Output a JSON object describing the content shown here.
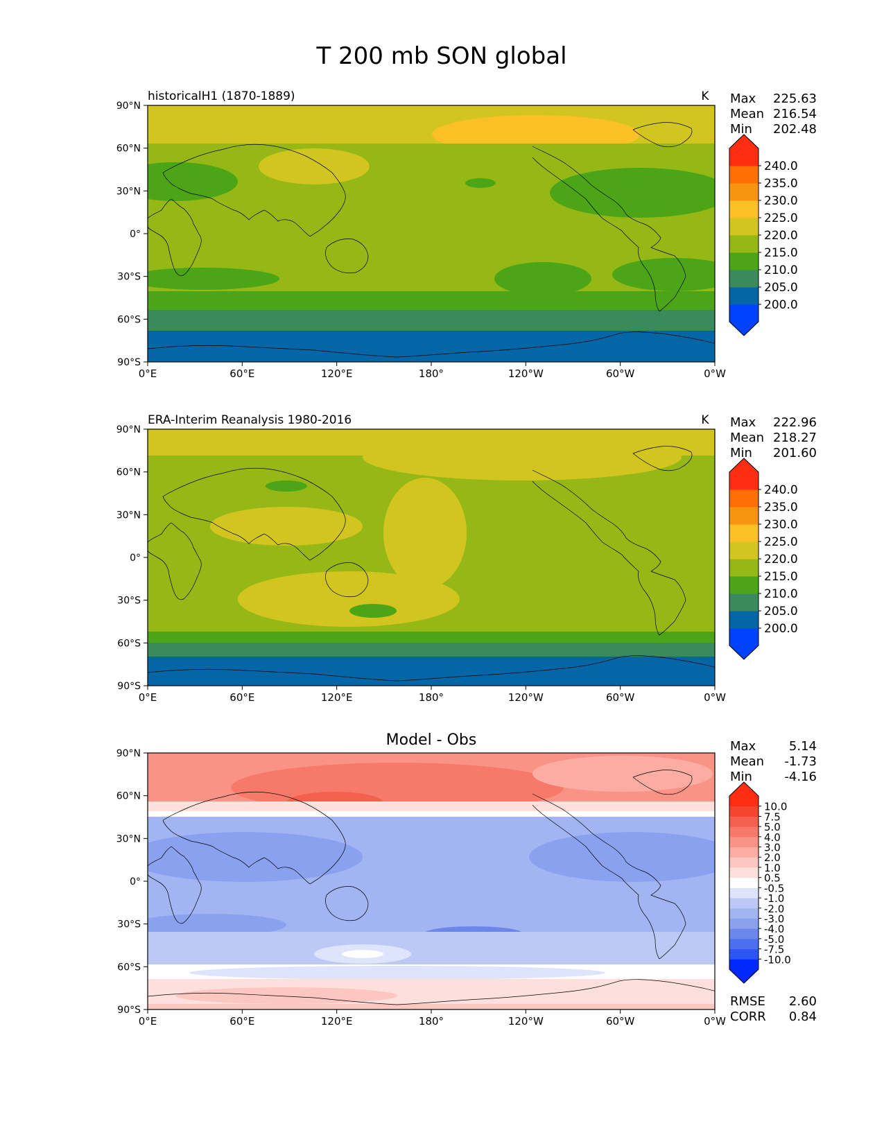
{
  "chart_data": {
    "type": "contour-map",
    "title": "T 200 mb SON global",
    "lat_ticks": [
      "90°N",
      "60°N",
      "30°N",
      "0°",
      "30°S",
      "60°S",
      "90°S"
    ],
    "lon_ticks": [
      "0°E",
      "60°E",
      "120°E",
      "180°",
      "120°W",
      "60°W",
      "0°W"
    ],
    "panels": [
      {
        "left_title": "historicalH1 (1870-1889)",
        "units": "K",
        "stats": [
          {
            "label": "Max",
            "value": "225.63"
          },
          {
            "label": "Mean",
            "value": "216.54"
          },
          {
            "label": "Min",
            "value": "202.48"
          }
        ],
        "colorbar": {
          "levels": [
            "200.0",
            "205.0",
            "210.0",
            "215.0",
            "220.0",
            "225.0",
            "230.0",
            "235.0",
            "240.0"
          ],
          "colors": [
            "#0042ff",
            "#0466a6",
            "#3a8a5e",
            "#4ca516",
            "#95b817",
            "#d3c51f",
            "#fbc025",
            "#f79510",
            "#ff6f03",
            "#ff2d12"
          ]
        }
      },
      {
        "left_title": "ERA-Interim Reanalysis 1980-2016",
        "units": "K",
        "stats": [
          {
            "label": "Max",
            "value": "222.96"
          },
          {
            "label": "Mean",
            "value": "218.27"
          },
          {
            "label": "Min",
            "value": "201.60"
          }
        ],
        "colorbar": {
          "levels": [
            "200.0",
            "205.0",
            "210.0",
            "215.0",
            "220.0",
            "225.0",
            "230.0",
            "235.0",
            "240.0"
          ],
          "colors": [
            "#0042ff",
            "#0466a6",
            "#3a8a5e",
            "#4ca516",
            "#95b817",
            "#d3c51f",
            "#fbc025",
            "#f79510",
            "#ff6f03",
            "#ff2d12"
          ]
        }
      },
      {
        "center_title": "Model - Obs",
        "stats": [
          {
            "label": "Max",
            "value": "5.14"
          },
          {
            "label": "Mean",
            "value": "-1.73"
          },
          {
            "label": "Min",
            "value": "-4.16"
          }
        ],
        "metrics": [
          {
            "label": "RMSE",
            "value": "2.60"
          },
          {
            "label": "CORR",
            "value": "0.84"
          }
        ],
        "colorbar": {
          "levels": [
            "-10.0",
            "-7.5",
            "-5.0",
            "-4.0",
            "-3.0",
            "-2.0",
            "-1.0",
            "-0.5",
            "0.5",
            "1.0",
            "2.0",
            "3.0",
            "4.0",
            "5.0",
            "7.5",
            "10.0"
          ],
          "colors": [
            "#0029ff",
            "#2d56f7",
            "#4c6ff0",
            "#6b87ec",
            "#8aa1ef",
            "#a2b5f2",
            "#bcc9f6",
            "#dde4fb",
            "#ffffff",
            "#fde0dc",
            "#fcc7c0",
            "#fbada3",
            "#f99386",
            "#f7796a",
            "#f55f4d",
            "#f4452f",
            "#ff2d12"
          ]
        }
      }
    ]
  }
}
